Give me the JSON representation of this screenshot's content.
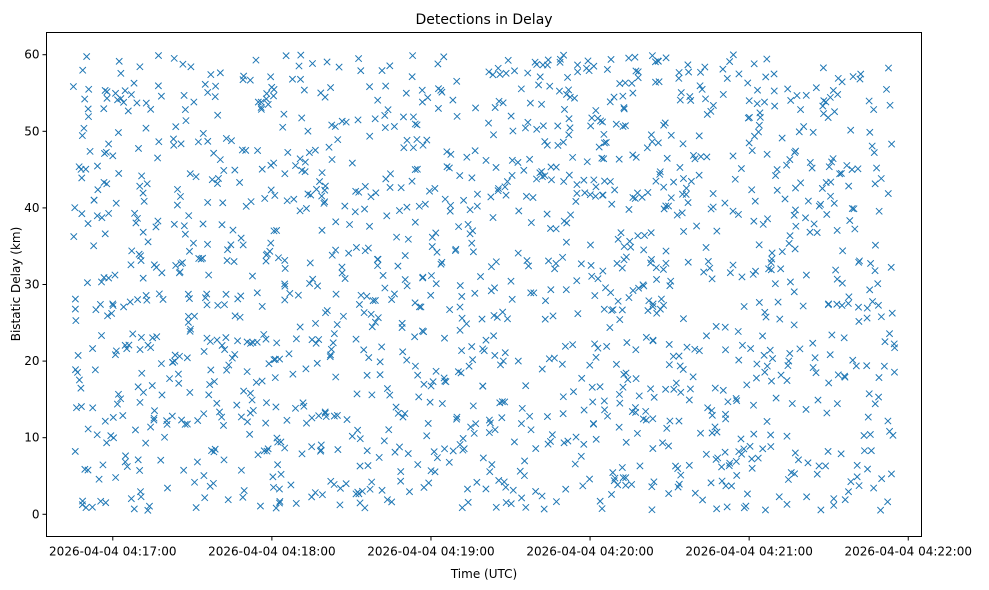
{
  "chart_data": {
    "type": "scatter",
    "title": "Detections in Delay",
    "xlabel": "Time (UTC)",
    "ylabel": "Bistatic Delay (km)",
    "x_type": "time",
    "xlim": [
      "2026-04-04T04:16:35",
      "2026-04-04T04:22:05"
    ],
    "x_ticks": [
      "2026-04-04 04:17:00",
      "2026-04-04 04:18:00",
      "2026-04-04 04:19:00",
      "2026-04-04 04:20:00",
      "2026-04-04 04:21:00",
      "2026-04-04 04:22:00"
    ],
    "ylim": [
      -2.9,
      62.9
    ],
    "y_ticks": [
      "0",
      "10",
      "20",
      "30",
      "40",
      "50",
      "60"
    ],
    "grid": false,
    "marker": "x",
    "series": [
      {
        "color": "#1f77b4",
        "x_range": [
          "2026-04-04T04:16:45",
          "2026-04-04T04:21:55"
        ],
        "y_range": [
          0.5,
          60
        ],
        "count": 1500,
        "distribution": "uniform"
      }
    ]
  }
}
